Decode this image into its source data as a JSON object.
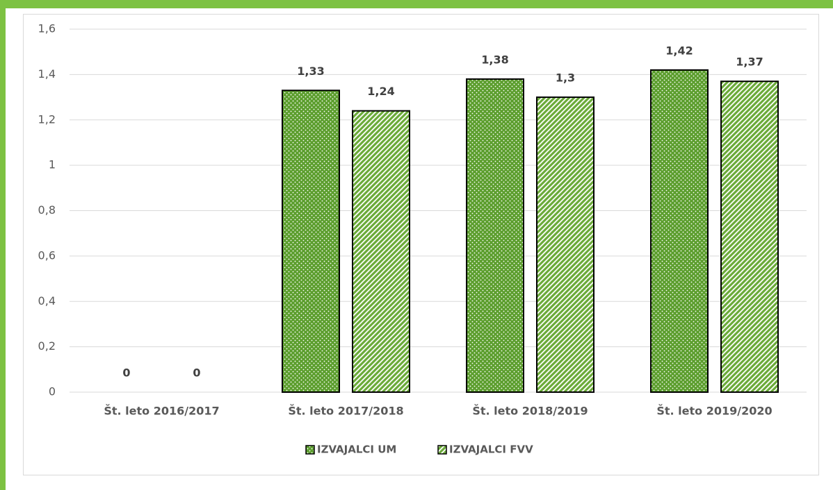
{
  "chart_data": {
    "type": "bar",
    "categories": [
      "Št. leto 2016/2017",
      "Št. leto 2017/2018",
      "Št. leto 2018/2019",
      "Št. leto 2019/2020"
    ],
    "series": [
      {
        "name": "IZVAJALCI UM",
        "color": "#5c9e2e",
        "values": [
          0,
          1.33,
          1.38,
          1.42
        ],
        "value_labels": [
          "0",
          "1,33",
          "1,38",
          "1,42"
        ]
      },
      {
        "name": "IZVAJALCI FVV",
        "color": "#6aaa38",
        "values": [
          0,
          1.24,
          1.3,
          1.37
        ],
        "value_labels": [
          "0",
          "1,24",
          "1,3",
          "1,37"
        ]
      }
    ],
    "ylim": [
      0,
      1.6
    ],
    "yticks": [
      0,
      {
        "value": 0.2,
        "label": "0,2"
      },
      {
        "value": 0.4,
        "label": "0,4"
      },
      {
        "value": 0.6,
        "label": "0,6"
      },
      {
        "value": 0.8,
        "label": "0,8"
      },
      1,
      {
        "value": 1.2,
        "label": "1,2"
      },
      {
        "value": 1.4,
        "label": "1,4"
      },
      {
        "value": 1.6,
        "label": "1,6"
      }
    ],
    "grid": true,
    "legend": "bottom"
  }
}
